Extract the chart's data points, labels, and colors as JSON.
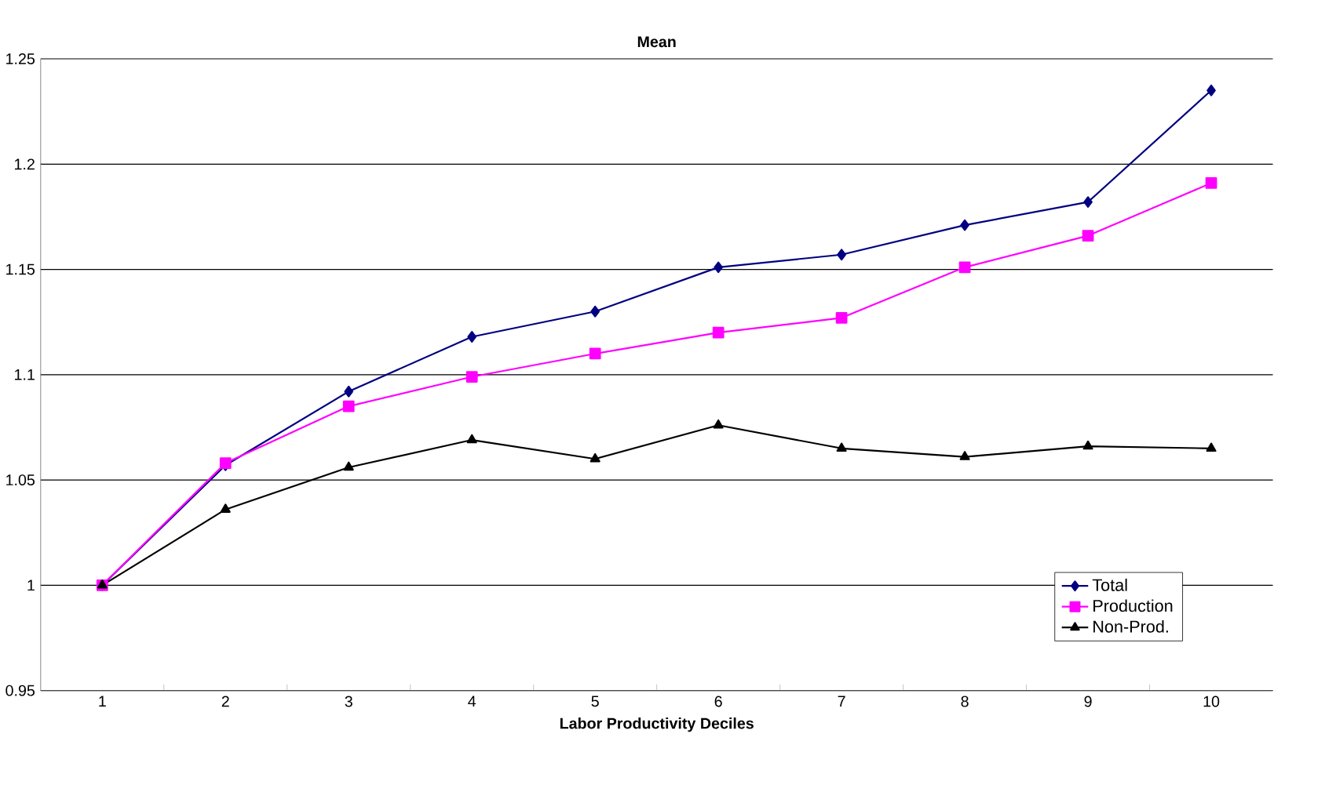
{
  "chart_data": {
    "type": "line",
    "title": "Mean",
    "xlabel": "Labor Productivity Deciles",
    "categories": [
      "1",
      "2",
      "3",
      "4",
      "5",
      "6",
      "7",
      "8",
      "9",
      "10"
    ],
    "series": [
      {
        "name": "Total",
        "color": "#000080",
        "marker": "diamond",
        "values": [
          1.0,
          1.057,
          1.092,
          1.118,
          1.13,
          1.151,
          1.157,
          1.171,
          1.182,
          1.235
        ]
      },
      {
        "name": "Production",
        "color": "#ff00ff",
        "marker": "square",
        "values": [
          1.0,
          1.058,
          1.085,
          1.099,
          1.11,
          1.12,
          1.127,
          1.151,
          1.166,
          1.191
        ]
      },
      {
        "name": "Non-Prod.",
        "color": "#000000",
        "marker": "triangle",
        "values": [
          1.0,
          1.036,
          1.056,
          1.069,
          1.06,
          1.076,
          1.065,
          1.061,
          1.066,
          1.065
        ]
      }
    ],
    "ylim": [
      0.95,
      1.25
    ],
    "yticks": [
      0.95,
      1,
      1.05,
      1.1,
      1.15,
      1.2,
      1.25
    ],
    "grid": "y",
    "legend": "bottom right",
    "line_style": "solid"
  }
}
